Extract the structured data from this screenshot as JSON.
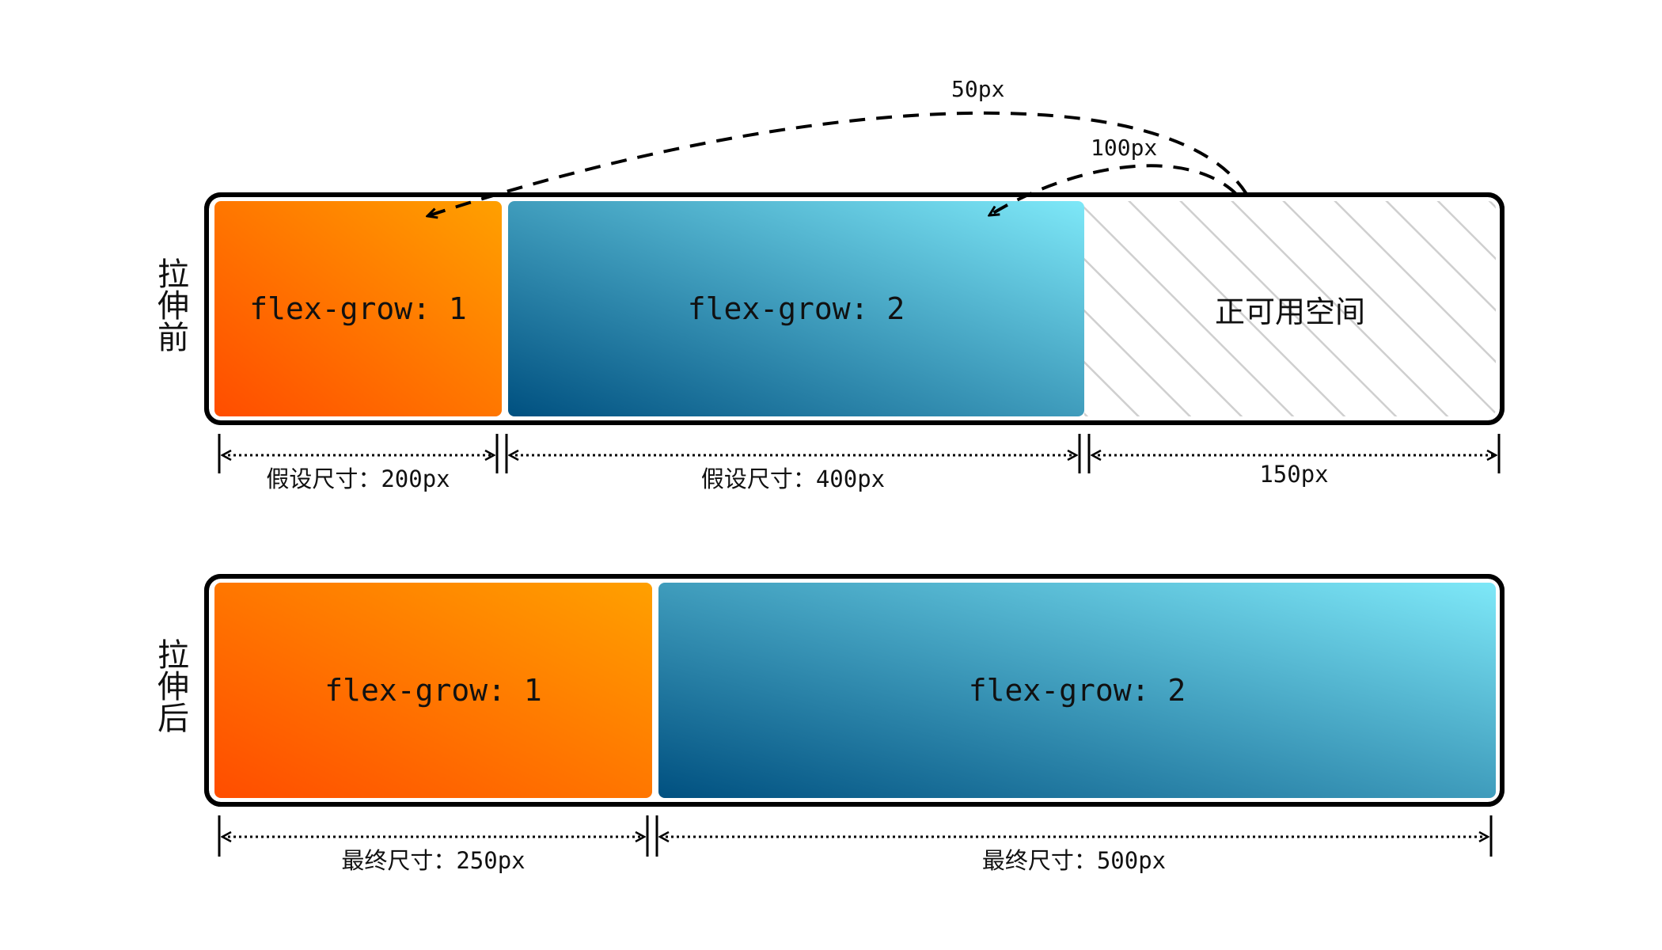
{
  "before": {
    "side_label": "拉伸前",
    "items": [
      {
        "label": "flex-grow: 1"
      },
      {
        "label": "flex-grow: 2"
      }
    ],
    "free_space_label": "正可用空间",
    "dimensions": [
      {
        "prefix": "假设尺寸：",
        "value": "200px"
      },
      {
        "prefix": "假设尺寸：",
        "value": "400px"
      },
      {
        "prefix": "",
        "value": "150px"
      }
    ],
    "distribution": [
      {
        "amount": "50px"
      },
      {
        "amount": "100px"
      }
    ]
  },
  "after": {
    "side_label": "拉伸后",
    "items": [
      {
        "label": "flex-grow: 1"
      },
      {
        "label": "flex-grow: 2"
      }
    ],
    "dimensions": [
      {
        "prefix": "最终尺寸：",
        "value": "250px"
      },
      {
        "prefix": "最终尺寸：",
        "value": "500px"
      }
    ]
  },
  "colors": {
    "orange_start": "#ffa000",
    "orange_end": "#ff4d00",
    "blue_start": "#7ee8f8",
    "blue_end": "#005080",
    "stripe": "#cfcfcf",
    "border": "#000000"
  }
}
